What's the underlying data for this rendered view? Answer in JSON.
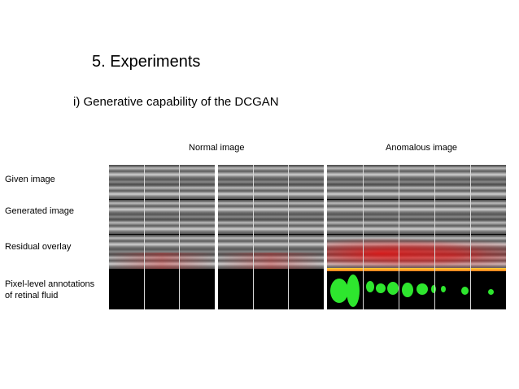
{
  "slide": {
    "title": "5. Experiments",
    "subtitle": "i) Generative capability of the DCGAN"
  },
  "groups": {
    "normal_label": "Normal image",
    "anomalous_label": "Anomalous image"
  },
  "rows": [
    "Given image",
    "Generated image",
    "Residual overlay",
    "Pixel-level annotations of retinal fluid"
  ],
  "row_label_lines": {
    "pixel_line1": "Pixel-level annotations",
    "pixel_line2": "of retinal fluid"
  },
  "colors": {
    "residual": "#e61414",
    "fluid_annotation": "#2ee62e",
    "layer_line": "#ffb020"
  }
}
